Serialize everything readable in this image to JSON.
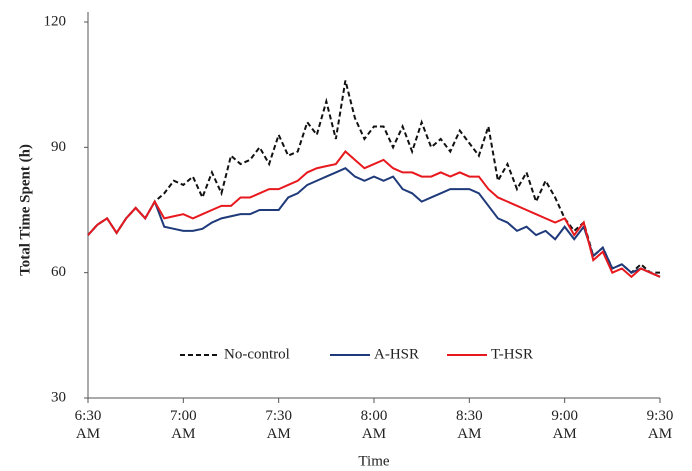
{
  "chart_data": {
    "type": "line",
    "x_label": "Time",
    "y_label": "Total Time Spent (h)",
    "categories": [
      "6:30 AM",
      null,
      null,
      null,
      null,
      null,
      null,
      null,
      null,
      null,
      "7:00 AM",
      null,
      null,
      null,
      null,
      null,
      null,
      null,
      null,
      null,
      "7:30 AM",
      null,
      null,
      null,
      null,
      null,
      null,
      null,
      null,
      null,
      "8:00 AM",
      null,
      null,
      null,
      null,
      null,
      null,
      null,
      null,
      null,
      "8:30 AM",
      null,
      null,
      null,
      null,
      null,
      null,
      null,
      null,
      null,
      "9:00 AM",
      null,
      null,
      null,
      null,
      null,
      null,
      null,
      null,
      null,
      "9:30 AM"
    ],
    "ylim": [
      30,
      120
    ],
    "yticks": [
      30,
      60,
      90,
      120
    ],
    "grid": false,
    "series": [
      {
        "name": "No-control",
        "color": "#111111",
        "dashed": true,
        "values": [
          69,
          71.5,
          73,
          69.5,
          73,
          75.5,
          73,
          77,
          79,
          82,
          81,
          83,
          78,
          84,
          79,
          88,
          86,
          87,
          90,
          86,
          93,
          88,
          89,
          96,
          93,
          101,
          92,
          106,
          97,
          92,
          95,
          95,
          90,
          95,
          89,
          96,
          90,
          92,
          89,
          94,
          91,
          88,
          95,
          82,
          86,
          80,
          84,
          77,
          82,
          78,
          73,
          70,
          72,
          64,
          66,
          61,
          62,
          60,
          62,
          60,
          60
        ]
      },
      {
        "name": "A-HSR",
        "color": "#1f3a7a",
        "dashed": false,
        "values": [
          69,
          71.5,
          73,
          69.5,
          73,
          75.5,
          73,
          77,
          71,
          70.5,
          70,
          70,
          70.5,
          72,
          73,
          73.5,
          74,
          74,
          75,
          75,
          75,
          78,
          79,
          81,
          82,
          83,
          84,
          85,
          83,
          82,
          83,
          82,
          83,
          80,
          79,
          77,
          78,
          79,
          80,
          80,
          80,
          79,
          76,
          73,
          72,
          70,
          71,
          69,
          70,
          68,
          71,
          68,
          71,
          64,
          66,
          61,
          62,
          60,
          61,
          60,
          59
        ]
      },
      {
        "name": "T-HSR",
        "color": "#e8191e",
        "dashed": false,
        "values": [
          69,
          71.5,
          73,
          69.5,
          73,
          75.5,
          73,
          77,
          73,
          73.5,
          74,
          73,
          74,
          75,
          76,
          76,
          78,
          78,
          79,
          80,
          80,
          81,
          82,
          84,
          85,
          85.5,
          86,
          89,
          87,
          85,
          86,
          87,
          85,
          84,
          84,
          83,
          83,
          84,
          83,
          84,
          83,
          83,
          80,
          78,
          77,
          76,
          75,
          74,
          73,
          72,
          73,
          69,
          72,
          63,
          65,
          60,
          61,
          59,
          61,
          60,
          59
        ]
      }
    ]
  }
}
